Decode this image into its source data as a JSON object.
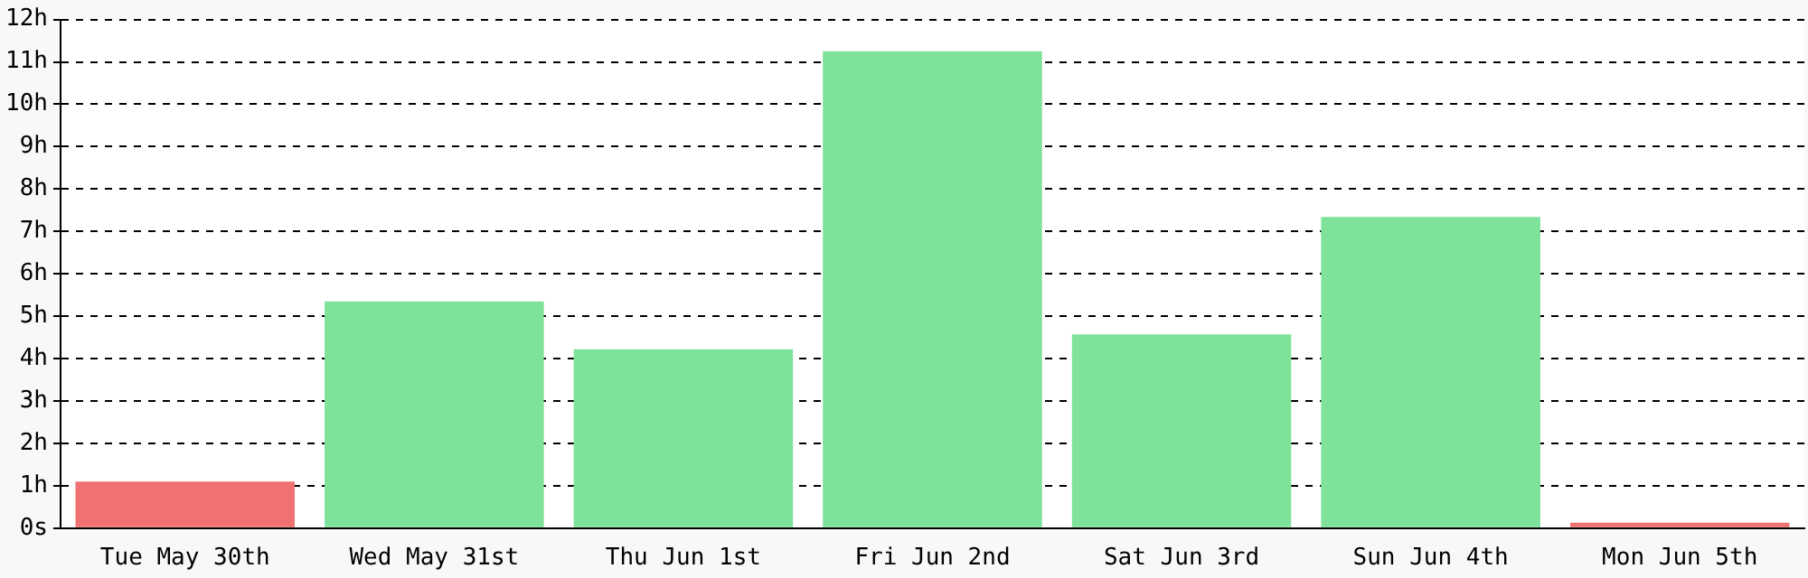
{
  "chart_data": {
    "type": "bar",
    "categories": [
      "Tue May 30th",
      "Wed May 31st",
      "Thu Jun 1st",
      "Fri Jun 2nd",
      "Sat Jun 3rd",
      "Sun Jun 4th",
      "Mon Jun 5th"
    ],
    "values": [
      1.1,
      5.35,
      4.22,
      11.25,
      4.57,
      7.34,
      0.13
    ],
    "colors": [
      "#f07171",
      "#7ee29a",
      "#7ee29a",
      "#7ee29a",
      "#7ee29a",
      "#7ee29a",
      "#f07171"
    ],
    "ylim": [
      0,
      12
    ],
    "yticks": [
      {
        "value": 0,
        "label": "0s"
      },
      {
        "value": 1,
        "label": "1h"
      },
      {
        "value": 2,
        "label": "2h"
      },
      {
        "value": 3,
        "label": "3h"
      },
      {
        "value": 4,
        "label": "4h"
      },
      {
        "value": 5,
        "label": "5h"
      },
      {
        "value": 6,
        "label": "6h"
      },
      {
        "value": 7,
        "label": "7h"
      },
      {
        "value": 8,
        "label": "8h"
      },
      {
        "value": 9,
        "label": "9h"
      },
      {
        "value": 10,
        "label": "10h"
      },
      {
        "value": 11,
        "label": "11h"
      },
      {
        "value": 12,
        "label": "12h"
      }
    ],
    "grid": "y",
    "legend": false
  }
}
